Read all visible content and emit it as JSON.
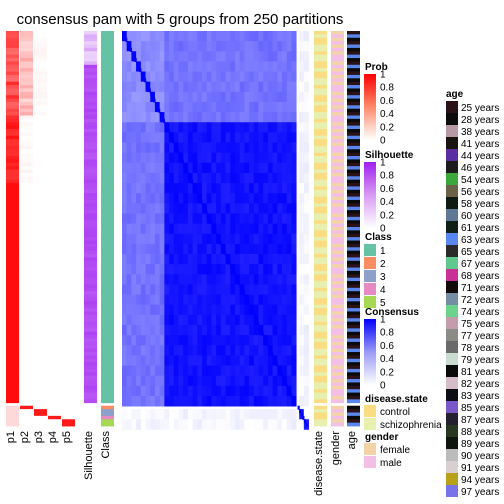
{
  "chart_data": {
    "type": "heatmap",
    "title": "consensus pam with 5 groups from 250 partitions",
    "columns_left": [
      "p1",
      "p2",
      "p3",
      "p4",
      "p5",
      "Silhouette",
      "Class"
    ],
    "columns_right": [
      "disease.state",
      "gender",
      "age"
    ],
    "group_sizes": [
      110,
      1,
      2,
      1,
      2
    ],
    "colors": {
      "class": {
        "1": "#66c2a5",
        "2": "#fc8d62",
        "3": "#8da0cb",
        "4": "#e78ac3",
        "5": "#a6d854"
      },
      "disease_state": {
        "control": "#fadc82",
        "schizophrenia": "#e8f0b0"
      },
      "gender": {
        "female": "#f2d4a8",
        "male": "#f4bfe6"
      },
      "prob_low": "#ffffff",
      "prob_high": "#ff0000",
      "silhouette_low": "#ffffff",
      "silhouette_high": "#a020f0",
      "consensus_low": "#ffffff",
      "consensus_high": "#0000ff"
    },
    "legends": {
      "prob": {
        "title": "Prob",
        "ticks": [
          "1",
          "0.8",
          "0.6",
          "0.4",
          "0.2",
          "0"
        ]
      },
      "silhouette": {
        "title": "Silhouette",
        "ticks": [
          "1",
          "0.8",
          "0.6",
          "0.4",
          "0.2",
          "0"
        ]
      },
      "class": {
        "title": "Class",
        "items": [
          "1",
          "2",
          "3",
          "4",
          "5"
        ]
      },
      "consensus": {
        "title": "Consensus",
        "ticks": [
          "1",
          "0.8",
          "0.6",
          "0.4",
          "0.2",
          "0"
        ]
      },
      "disease_state": {
        "title": "disease.state",
        "items": [
          "control",
          "schizophrenia"
        ]
      },
      "gender": {
        "title": "gender",
        "items": [
          "female",
          "male"
        ]
      },
      "age": {
        "title": "age",
        "items": [
          "25 years",
          "28 years",
          "38 years",
          "41 years",
          "44 years",
          "46 years",
          "54 years",
          "56 years",
          "58 years",
          "60 years",
          "61 years",
          "63 years",
          "65 years",
          "67 years",
          "68 years",
          "71 years",
          "72 years",
          "74 years",
          "75 years",
          "77 years",
          "78 years",
          "79 years",
          "81 years",
          "82 years",
          "83 years",
          "85 years",
          "87 years",
          "88 years",
          "89 years",
          "90 years",
          "91 years",
          "94 years",
          "97 years"
        ],
        "colors": [
          "#2b1216",
          "#0d0d0d",
          "#b79aa6",
          "#1a1410",
          "#5a2ea0",
          "#1c1c1c",
          "#3aa83a",
          "#6b6248",
          "#0f1a12",
          "#607898",
          "#102014",
          "#5a86f0",
          "#2a2a2a",
          "#5ec88e",
          "#c83296",
          "#140a0a",
          "#748ca4",
          "#6cd48a",
          "#c49cac",
          "#8c8c84",
          "#6a6a6a",
          "#c8dcd0",
          "#0a0a0a",
          "#d4bcc8",
          "#0c0c14",
          "#7a58c8",
          "#242030",
          "#283820",
          "#0e140e",
          "#bcbcbc",
          "#d8d0d0",
          "#b8a018",
          "#7874e8"
        ]
      }
    }
  }
}
